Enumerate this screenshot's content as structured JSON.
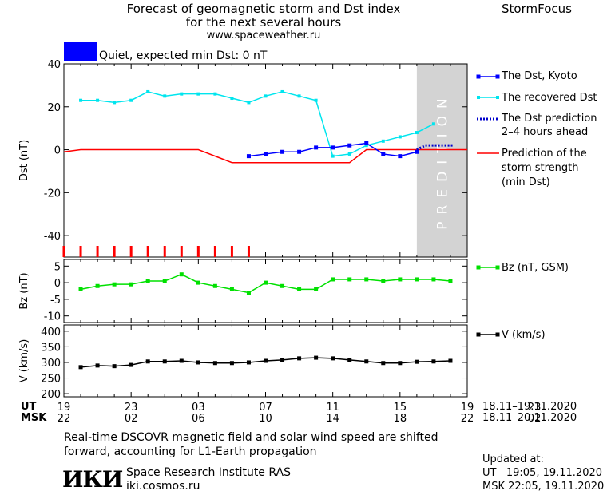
{
  "header": {
    "title_line1": "Forecast of geomagnetic storm and Dst index",
    "title_line2": "for the next several hours",
    "url": "www.spaceweather.ru",
    "brand": "StormFocus"
  },
  "status": {
    "color": "#0000ff",
    "text": "Quiet, expected min Dst: 0 nT"
  },
  "legend": {
    "dst_kyoto": "The Dst, Kyoto",
    "recovered": "The recovered Dst",
    "prediction_l1": "The Dst prediction",
    "prediction_l2": "2–4 hours ahead",
    "strength_l1": "Prediction of the",
    "strength_l2": "storm strength",
    "strength_l3": "(min Dst)",
    "bz": "Bz (nT, GSM)",
    "v": "V (km/s)"
  },
  "axes": {
    "ut_label": "UT",
    "msk_label": "MSK",
    "ut_ticks": [
      "19",
      "23",
      "03",
      "07",
      "11",
      "15",
      "19",
      "23"
    ],
    "msk_ticks": [
      "22",
      "02",
      "06",
      "10",
      "14",
      "18",
      "22",
      "02"
    ],
    "ut_range": "18.11–19.11.2020",
    "msk_range": "18.11–20.11.2020"
  },
  "footer": {
    "note_line1": "Real-time DSCOVR magnetic field and solar wind speed are shifted",
    "note_line2": "forward, accounting for L1-Earth propagation",
    "logo_text": "ИКИ",
    "institute": "Space Research Institute RAS",
    "site": "iki.cosmos.ru",
    "updated_label": "Updated at:",
    "updated_ut": "UT   19:05, 19.11.2020",
    "updated_msk": "MSK 22:05, 19.11.2020"
  },
  "chart_data": [
    {
      "type": "line",
      "ylabel": "Dst (nT)",
      "xlim": [
        19,
        43
      ],
      "ylim": [
        -50,
        40
      ],
      "yticks": [
        40,
        20,
        0,
        -20,
        -40
      ],
      "prediction_zone": {
        "label": "PREDITION",
        "x_start": 40,
        "x_end": 43
      },
      "series": [
        {
          "name": "The Dst, Kyoto",
          "color": "#0000ff",
          "x": [
            30,
            31,
            32,
            33,
            34,
            35,
            36,
            37,
            38,
            39,
            40
          ],
          "y": [
            -3,
            -2,
            -1,
            -1,
            1,
            1,
            2,
            3,
            -2,
            -3,
            -1
          ]
        },
        {
          "name": "The recovered Dst",
          "color": "#00e5ee",
          "x": [
            20,
            21,
            22,
            23,
            24,
            25,
            26,
            27,
            28,
            29,
            30,
            31,
            32,
            33,
            34,
            35,
            36,
            37,
            38,
            39,
            40,
            41
          ],
          "y": [
            23,
            23,
            22,
            23,
            27,
            25,
            26,
            26,
            26,
            24,
            22,
            25,
            27,
            25,
            23,
            -3,
            -2,
            2,
            4,
            6,
            8,
            12
          ]
        },
        {
          "name": "The Dst prediction 2-4 hours ahead",
          "color": "#0000cc",
          "x": [
            40,
            40.5,
            41,
            42.2
          ],
          "y": [
            0,
            2,
            2,
            2
          ]
        },
        {
          "name": "Prediction of the storm strength (min Dst)",
          "color": "#ff0000",
          "x": [
            19,
            20,
            27,
            28,
            29,
            33,
            36,
            37,
            43
          ],
          "y": [
            -1,
            0,
            0,
            -3,
            -6,
            -6,
            -6,
            0,
            0
          ]
        }
      ],
      "red_ticks_x": [
        19,
        20,
        21,
        22,
        23,
        24,
        25,
        26,
        27,
        28,
        29,
        30
      ]
    },
    {
      "type": "line",
      "ylabel": "Bz (nT)",
      "ylim": [
        -12,
        7
      ],
      "yticks": [
        5,
        0,
        -5,
        -10
      ],
      "series": [
        {
          "name": "Bz (nT, GSM)",
          "color": "#00e000",
          "x": [
            20,
            21,
            22,
            23,
            24,
            25,
            26,
            27,
            28,
            29,
            30,
            31,
            32,
            33,
            34,
            35,
            36,
            37,
            38,
            39,
            40,
            41,
            42
          ],
          "y": [
            -2,
            -1,
            -0.5,
            -0.5,
            0.5,
            0.5,
            2.5,
            0,
            -1,
            -2,
            -3,
            0,
            -1,
            -2,
            -2,
            1,
            1,
            1,
            0.5,
            1,
            1,
            1,
            0.5
          ]
        }
      ]
    },
    {
      "type": "line",
      "ylabel": "V (km/s)",
      "ylim": [
        190,
        420
      ],
      "yticks": [
        400,
        350,
        300,
        250,
        200
      ],
      "series": [
        {
          "name": "V (km/s)",
          "color": "#000000",
          "x": [
            20,
            21,
            22,
            23,
            24,
            25,
            26,
            27,
            28,
            29,
            30,
            31,
            32,
            33,
            34,
            35,
            36,
            37,
            38,
            39,
            40,
            41,
            42
          ],
          "y": [
            285,
            290,
            288,
            292,
            303,
            303,
            305,
            300,
            298,
            298,
            300,
            305,
            308,
            313,
            315,
            313,
            308,
            303,
            298,
            298,
            302,
            303,
            305
          ]
        }
      ]
    }
  ]
}
